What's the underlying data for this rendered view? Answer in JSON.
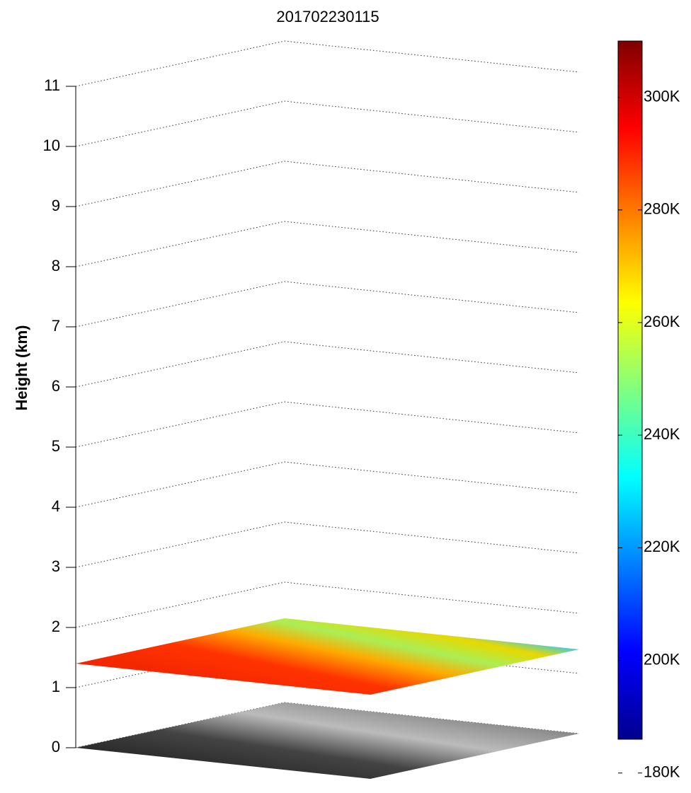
{
  "chart_data": {
    "type": "surface3d",
    "title": "201702230115",
    "ylabel": "Height (km)",
    "ylim": [
      0,
      11
    ],
    "yticks": [
      0,
      1,
      2,
      3,
      4,
      5,
      6,
      7,
      8,
      9,
      10,
      11
    ],
    "grid": true,
    "surface_heights": [
      0,
      1.4
    ],
    "colorbar": {
      "clim": [
        186,
        310
      ],
      "colormap": "jet",
      "ticks": [
        {
          "value": 180,
          "label": "180K"
        },
        {
          "value": 200,
          "label": "200K"
        },
        {
          "value": 220,
          "label": "220K"
        },
        {
          "value": 240,
          "label": "240K"
        },
        {
          "value": 260,
          "label": "260K"
        },
        {
          "value": 280,
          "label": "280K"
        },
        {
          "value": 300,
          "label": "300K"
        }
      ]
    }
  }
}
